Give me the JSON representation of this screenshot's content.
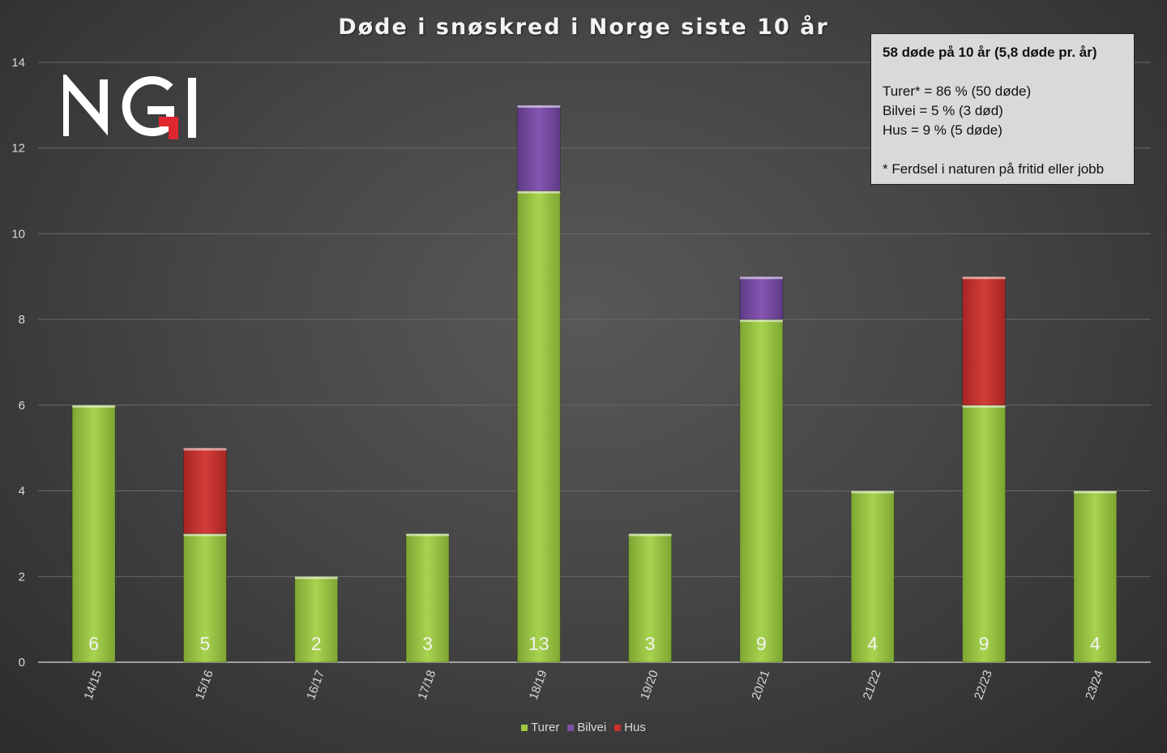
{
  "chart_data": {
    "type": "bar",
    "stacked": true,
    "title": "Døde i snøskred i Norge siste 10 år",
    "xlabel": "",
    "ylabel": "",
    "ylim": [
      0,
      14
    ],
    "yticks": [
      0,
      2,
      4,
      6,
      8,
      10,
      12,
      14
    ],
    "grid": true,
    "legend_position": "bottom",
    "categories": [
      "14/15",
      "15/16",
      "16/17",
      "17/18",
      "18/19",
      "19/20",
      "20/21",
      "21/22",
      "22/23",
      "23/24"
    ],
    "series": [
      {
        "name": "Turer",
        "color": "#9dc843",
        "values": [
          6,
          3,
          2,
          3,
          11,
          3,
          8,
          4,
          6,
          4
        ]
      },
      {
        "name": "Bilvei",
        "color": "#7a4fa3",
        "values": [
          0,
          0,
          0,
          0,
          2,
          0,
          1,
          0,
          0,
          0
        ]
      },
      {
        "name": "Hus",
        "color": "#c9302e",
        "values": [
          0,
          2,
          0,
          0,
          0,
          0,
          0,
          0,
          3,
          0
        ]
      }
    ],
    "totals": [
      "6",
      "5",
      "2",
      "3",
      "13",
      "3",
      "9",
      "4",
      "9",
      "4"
    ]
  },
  "info_box": {
    "headline": "58 døde på 10 år (5,8 døde pr. år)",
    "line_turer": "Turer* = 86 % (50 døde)",
    "line_bilvei": "Bilvei = 5 % (3 død)",
    "line_hus": "Hus = 9 % (5 døde)",
    "footnote": "* Ferdsel i naturen på fritid eller jobb"
  },
  "logo": {
    "text": "NGI",
    "accent_color": "#e0262e"
  }
}
